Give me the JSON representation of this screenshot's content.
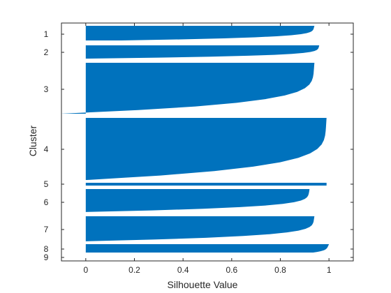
{
  "chart_data": {
    "type": "silhouette",
    "xlabel": "Silhouette Value",
    "ylabel": "Cluster",
    "xlim": [
      -0.1,
      1.1
    ],
    "xticks": [
      0,
      0.2,
      0.4,
      0.6,
      0.8,
      1
    ],
    "xtick_labels": [
      "0",
      "0.2",
      "0.4",
      "0.6",
      "0.8",
      "1"
    ],
    "bar_color": "#0072BD",
    "grid": false,
    "clusters": [
      {
        "label": "1",
        "silhouette_max": 0.94,
        "silhouette_min": 0.16,
        "relative_size": 6
      },
      {
        "label": "2",
        "silhouette_max": 0.96,
        "silhouette_min": 0.02,
        "relative_size": 5
      },
      {
        "label": "3",
        "silhouette_max": 0.94,
        "silhouette_min": -0.09,
        "relative_size": 19
      },
      {
        "label": "4",
        "silhouette_max": 0.99,
        "silhouette_min": 0.02,
        "relative_size": 22
      },
      {
        "label": "5",
        "silhouette_max": 0.99,
        "silhouette_min": 0.98,
        "relative_size": 0.5
      },
      {
        "label": "6",
        "silhouette_max": 0.92,
        "silhouette_min": 0.0,
        "relative_size": 8
      },
      {
        "label": "7",
        "silhouette_max": 0.94,
        "silhouette_min": 0.0,
        "relative_size": 8
      },
      {
        "label": "8",
        "silhouette_max": 1.0,
        "silhouette_min": 0.95,
        "relative_size": 2.5
      },
      {
        "label": "9",
        "silhouette_max": 0.0,
        "silhouette_min": 0.0,
        "relative_size": 0
      }
    ]
  }
}
